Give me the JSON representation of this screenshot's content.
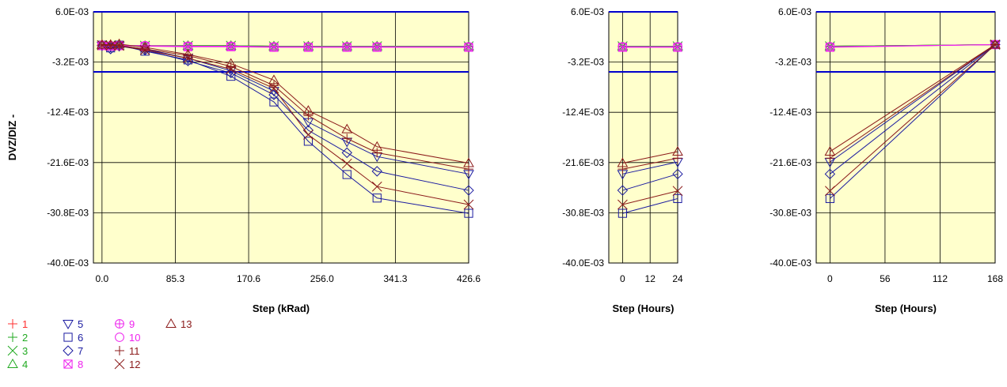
{
  "chart_data": [
    {
      "type": "line",
      "xlabel": "Step (kRad)",
      "ylabel": "DVZ/DIZ -",
      "x_ticks": [
        "0.0",
        "85.3",
        "170.6",
        "256.0",
        "341.3",
        "426.6"
      ],
      "x_tick_values": [
        0,
        85.3,
        170.6,
        256.0,
        341.3,
        426.6
      ],
      "xlim": [
        -10,
        426.6
      ],
      "y_ticks": [
        "6.0E-03",
        "-3.2E-03",
        "-12.4E-03",
        "-21.6E-03",
        "-30.8E-03",
        "-40.0E-03"
      ],
      "y_tick_values": [
        0.006,
        -0.0032,
        -0.0124,
        -0.0216,
        -0.0308,
        -0.04
      ],
      "ylim": [
        -0.04,
        0.006
      ],
      "spec_limits": [
        0.006,
        -0.005
      ],
      "grid": true,
      "x": [
        0,
        10,
        20,
        50,
        100,
        150,
        200,
        240,
        285,
        320,
        426.6
      ],
      "series": [
        {
          "name": "1",
          "color": "#ff3030",
          "marker": "plus",
          "values": [
            -0.0001,
            -0.0001,
            -0.0002,
            -0.0002,
            -0.0002,
            -0.0002,
            -0.0003,
            -0.0003,
            -0.0003,
            -0.0003,
            -0.0003
          ]
        },
        {
          "name": "2",
          "color": "#22aa22",
          "marker": "plus",
          "values": [
            -0.0001,
            -0.0001,
            -0.0002,
            -0.0002,
            -0.0002,
            -0.0002,
            -0.0003,
            -0.0003,
            -0.0003,
            -0.0003,
            -0.0003
          ]
        },
        {
          "name": "3",
          "color": "#22aa22",
          "marker": "x",
          "values": [
            -0.0001,
            -0.0001,
            -0.0002,
            -0.0002,
            -0.0002,
            -0.0002,
            -0.0003,
            -0.0003,
            -0.0003,
            -0.0003,
            -0.0003
          ]
        },
        {
          "name": "4",
          "color": "#22aa22",
          "marker": "triangle-up",
          "values": [
            -0.0001,
            -0.0001,
            -0.0002,
            -0.0002,
            -0.0002,
            -0.0002,
            -0.0003,
            -0.0003,
            -0.0003,
            -0.0003,
            -0.0003
          ]
        },
        {
          "name": "5",
          "color": "#1a1aa0",
          "marker": "triangle-down",
          "values": [
            -0.0002,
            -0.0004,
            -0.0002,
            -0.0008,
            -0.0025,
            -0.0048,
            -0.0085,
            -0.0142,
            -0.0178,
            -0.0205,
            -0.0237
          ]
        },
        {
          "name": "6",
          "color": "#1a1aa0",
          "marker": "square",
          "values": [
            -0.0001,
            -0.0006,
            -0.0001,
            -0.0012,
            -0.0028,
            -0.0058,
            -0.0105,
            -0.0177,
            -0.0238,
            -0.0281,
            -0.0309
          ]
        },
        {
          "name": "7",
          "color": "#1a1aa0",
          "marker": "diamond",
          "values": [
            -0.0002,
            -0.0008,
            -0.0003,
            -0.001,
            -0.003,
            -0.0052,
            -0.0092,
            -0.0157,
            -0.0198,
            -0.0232,
            -0.0267
          ]
        },
        {
          "name": "8",
          "color": "#ee22ee",
          "marker": "square-x",
          "values": [
            -0.0002,
            -0.0003,
            -0.0002,
            -0.0003,
            -0.0004,
            -0.0004,
            -0.0005,
            -0.0005,
            -0.0005,
            -0.0005,
            -0.0005
          ]
        },
        {
          "name": "9",
          "color": "#ee22ee",
          "marker": "circle-plus",
          "values": [
            -0.0001,
            -0.0002,
            -0.0002,
            -0.0002,
            -0.0003,
            -0.0003,
            -0.0004,
            -0.0004,
            -0.0004,
            -0.0004,
            -0.0004
          ]
        },
        {
          "name": "10",
          "color": "#ee22ee",
          "marker": "circle",
          "values": [
            -0.0001,
            -0.0002,
            -0.0002,
            -0.0002,
            -0.0003,
            -0.0003,
            -0.0004,
            -0.0004,
            -0.0004,
            -0.0004,
            -0.0004
          ]
        },
        {
          "name": "11",
          "color": "#8b1a1a",
          "marker": "plus",
          "values": [
            -0.0001,
            -0.0001,
            -0.0002,
            -0.0008,
            -0.002,
            -0.004,
            -0.0075,
            -0.013,
            -0.0172,
            -0.0198,
            -0.0228
          ]
        },
        {
          "name": "12",
          "color": "#8b1a1a",
          "marker": "x",
          "values": [
            -0.0001,
            -0.0002,
            -0.0002,
            -0.001,
            -0.0025,
            -0.0045,
            -0.008,
            -0.0165,
            -0.0218,
            -0.026,
            -0.0293
          ]
        },
        {
          "name": "13",
          "color": "#8b1a1a",
          "marker": "triangle-up",
          "values": [
            0.0,
            0.0,
            0.0001,
            -0.0005,
            -0.0018,
            -0.0035,
            -0.0065,
            -0.0121,
            -0.0155,
            -0.0187,
            -0.0217
          ]
        }
      ]
    },
    {
      "type": "line",
      "xlabel": "Step (Hours)",
      "ylabel": "",
      "x_ticks": [
        "0",
        "12",
        "24"
      ],
      "x_tick_values": [
        0,
        12,
        24
      ],
      "xlim": [
        -6,
        24
      ],
      "y_ticks": [
        "6.0E-03",
        "-3.2E-03",
        "-12.4E-03",
        "-21.6E-03",
        "-30.8E-03",
        "-40.0E-03"
      ],
      "y_tick_values": [
        0.006,
        -0.0032,
        -0.0124,
        -0.0216,
        -0.0308,
        -0.04
      ],
      "ylim": [
        -0.04,
        0.006
      ],
      "spec_limits": [
        0.006,
        -0.005
      ],
      "grid": true,
      "x": [
        0,
        24
      ],
      "series": [
        {
          "name": "1",
          "color": "#ff3030",
          "marker": "plus",
          "values": [
            -0.0003,
            -0.0003
          ]
        },
        {
          "name": "2",
          "color": "#22aa22",
          "marker": "plus",
          "values": [
            -0.0003,
            -0.0003
          ]
        },
        {
          "name": "3",
          "color": "#22aa22",
          "marker": "x",
          "values": [
            -0.0003,
            -0.0003
          ]
        },
        {
          "name": "4",
          "color": "#22aa22",
          "marker": "triangle-up",
          "values": [
            -0.0003,
            -0.0003
          ]
        },
        {
          "name": "5",
          "color": "#1a1aa0",
          "marker": "triangle-down",
          "values": [
            -0.0237,
            -0.0215
          ]
        },
        {
          "name": "6",
          "color": "#1a1aa0",
          "marker": "square",
          "values": [
            -0.0309,
            -0.0282
          ]
        },
        {
          "name": "7",
          "color": "#1a1aa0",
          "marker": "diamond",
          "values": [
            -0.0267,
            -0.0237
          ]
        },
        {
          "name": "8",
          "color": "#ee22ee",
          "marker": "square-x",
          "values": [
            -0.0005,
            -0.0005
          ]
        },
        {
          "name": "9",
          "color": "#ee22ee",
          "marker": "circle-plus",
          "values": [
            -0.0004,
            -0.0004
          ]
        },
        {
          "name": "10",
          "color": "#ee22ee",
          "marker": "circle",
          "values": [
            -0.0004,
            -0.0004
          ]
        },
        {
          "name": "11",
          "color": "#8b1a1a",
          "marker": "plus",
          "values": [
            -0.0228,
            -0.0208
          ]
        },
        {
          "name": "12",
          "color": "#8b1a1a",
          "marker": "x",
          "values": [
            -0.0293,
            -0.0268
          ]
        },
        {
          "name": "13",
          "color": "#8b1a1a",
          "marker": "triangle-up",
          "values": [
            -0.0217,
            -0.0196
          ]
        }
      ]
    },
    {
      "type": "line",
      "xlabel": "Step (Hours)",
      "ylabel": "",
      "x_ticks": [
        "0",
        "56",
        "112",
        "168"
      ],
      "x_tick_values": [
        0,
        56,
        112,
        168
      ],
      "xlim": [
        -14,
        168
      ],
      "y_ticks": [
        "6.0E-03",
        "-3.2E-03",
        "-12.4E-03",
        "-21.6E-03",
        "-30.8E-03",
        "-40.0E-03"
      ],
      "y_tick_values": [
        0.006,
        -0.0032,
        -0.0124,
        -0.0216,
        -0.0308,
        -0.04
      ],
      "ylim": [
        -0.04,
        0.006
      ],
      "spec_limits": [
        0.006,
        -0.005
      ],
      "grid": true,
      "x": [
        0,
        168
      ],
      "series": [
        {
          "name": "1",
          "color": "#ff3030",
          "marker": "plus",
          "values": [
            -0.0003,
            0.0
          ]
        },
        {
          "name": "2",
          "color": "#22aa22",
          "marker": "plus",
          "values": [
            -0.0003,
            0.0
          ]
        },
        {
          "name": "3",
          "color": "#22aa22",
          "marker": "x",
          "values": [
            -0.0003,
            0.0
          ]
        },
        {
          "name": "4",
          "color": "#22aa22",
          "marker": "triangle-up",
          "values": [
            -0.0003,
            0.0
          ]
        },
        {
          "name": "5",
          "color": "#1a1aa0",
          "marker": "triangle-down",
          "values": [
            -0.0215,
            0.0
          ]
        },
        {
          "name": "6",
          "color": "#1a1aa0",
          "marker": "square",
          "values": [
            -0.0282,
            0.0
          ]
        },
        {
          "name": "7",
          "color": "#1a1aa0",
          "marker": "diamond",
          "values": [
            -0.0237,
            0.0
          ]
        },
        {
          "name": "8",
          "color": "#ee22ee",
          "marker": "square-x",
          "values": [
            -0.0005,
            0.0
          ]
        },
        {
          "name": "9",
          "color": "#ee22ee",
          "marker": "circle-plus",
          "values": [
            -0.0004,
            0.0
          ]
        },
        {
          "name": "10",
          "color": "#ee22ee",
          "marker": "circle",
          "values": [
            -0.0004,
            0.0
          ]
        },
        {
          "name": "11",
          "color": "#8b1a1a",
          "marker": "plus",
          "values": [
            -0.0208,
            0.0
          ]
        },
        {
          "name": "12",
          "color": "#8b1a1a",
          "marker": "x",
          "values": [
            -0.0268,
            0.0
          ]
        },
        {
          "name": "13",
          "color": "#8b1a1a",
          "marker": "triangle-up",
          "values": [
            -0.0196,
            0.0
          ]
        }
      ]
    }
  ],
  "colors": {
    "plot_background": "#ffffcc",
    "spec_line": "#0000cc",
    "grid": "#000000"
  },
  "legend": {
    "placement": "bottom-left",
    "columns": [
      [
        "1",
        "2",
        "3",
        "4"
      ],
      [
        "5",
        "6",
        "7",
        "8"
      ],
      [
        "9",
        "10",
        "11",
        "12"
      ],
      [
        "13"
      ]
    ]
  }
}
